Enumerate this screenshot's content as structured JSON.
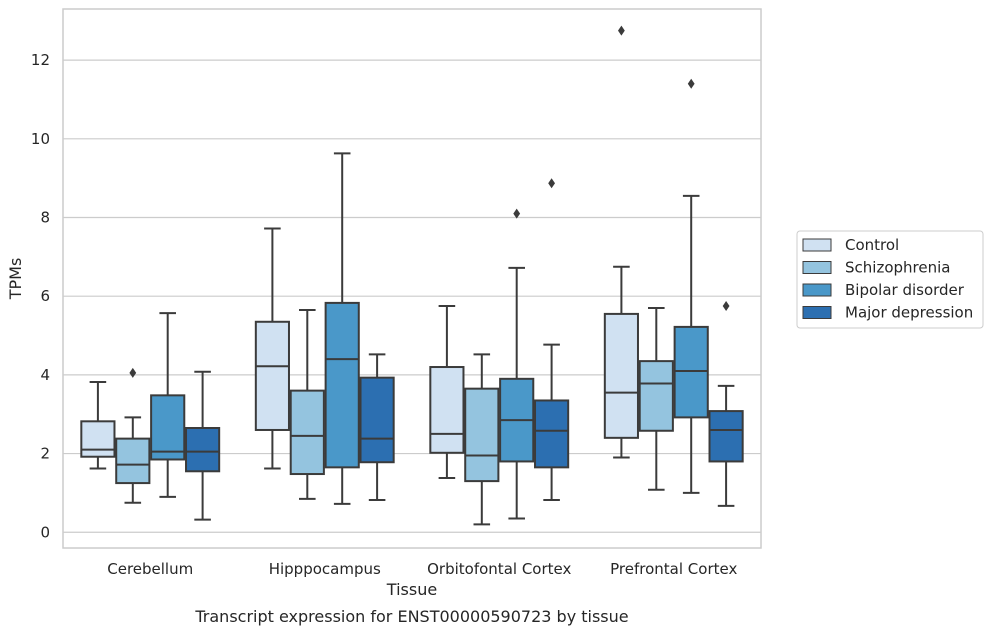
{
  "chart_data": {
    "type": "box",
    "title": "",
    "caption": "Transcript expression for ENST00000590723 by tissue",
    "xlabel": "Tissue",
    "ylabel": "TPMs",
    "ylim": [
      -0.4,
      13.3
    ],
    "yticks": [
      0,
      2,
      4,
      6,
      8,
      10,
      12
    ],
    "grid": true,
    "legend_position": "right",
    "categories": [
      "Cerebellum",
      "Hipppocampus",
      "Orbitofontal Cortex",
      "Prefrontal Cortex"
    ],
    "series": [
      {
        "name": "Control",
        "color": "#d0e1f2",
        "boxes": [
          {
            "whislo": 1.62,
            "q1": 1.92,
            "med": 2.1,
            "q3": 2.82,
            "whishi": 3.82,
            "fliers": []
          },
          {
            "whislo": 1.62,
            "q1": 2.6,
            "med": 4.22,
            "q3": 5.35,
            "whishi": 7.72,
            "fliers": []
          },
          {
            "whislo": 1.38,
            "q1": 2.02,
            "med": 2.5,
            "q3": 4.2,
            "whishi": 5.75,
            "fliers": []
          },
          {
            "whislo": 1.9,
            "q1": 2.4,
            "med": 3.55,
            "q3": 5.55,
            "whishi": 6.75,
            "fliers": [
              12.75
            ]
          }
        ]
      },
      {
        "name": "Schizophrenia",
        "color": "#94c4df",
        "boxes": [
          {
            "whislo": 0.75,
            "q1": 1.25,
            "med": 1.72,
            "q3": 2.38,
            "whishi": 2.92,
            "fliers": [
              4.05
            ]
          },
          {
            "whislo": 0.85,
            "q1": 1.48,
            "med": 2.45,
            "q3": 3.6,
            "whishi": 5.65,
            "fliers": []
          },
          {
            "whislo": 0.2,
            "q1": 1.3,
            "med": 1.95,
            "q3": 3.65,
            "whishi": 4.52,
            "fliers": []
          },
          {
            "whislo": 1.08,
            "q1": 2.58,
            "med": 3.78,
            "q3": 4.35,
            "whishi": 5.7,
            "fliers": []
          }
        ]
      },
      {
        "name": "Bipolar disorder",
        "color": "#4a98c9",
        "boxes": [
          {
            "whislo": 0.9,
            "q1": 1.85,
            "med": 2.05,
            "q3": 3.48,
            "whishi": 5.57,
            "fliers": []
          },
          {
            "whislo": 0.72,
            "q1": 1.65,
            "med": 4.4,
            "q3": 5.83,
            "whishi": 9.63,
            "fliers": []
          },
          {
            "whislo": 0.35,
            "q1": 1.8,
            "med": 2.85,
            "q3": 3.9,
            "whishi": 6.72,
            "fliers": [
              8.1
            ]
          },
          {
            "whislo": 1.0,
            "q1": 2.92,
            "med": 4.1,
            "q3": 5.22,
            "whishi": 8.55,
            "fliers": [
              11.4
            ]
          }
        ]
      },
      {
        "name": "Major depression",
        "color": "#2c6fb1",
        "boxes": [
          {
            "whislo": 0.32,
            "q1": 1.55,
            "med": 2.05,
            "q3": 2.65,
            "whishi": 4.08,
            "fliers": []
          },
          {
            "whislo": 0.82,
            "q1": 1.78,
            "med": 2.38,
            "q3": 3.93,
            "whishi": 4.52,
            "fliers": []
          },
          {
            "whislo": 0.82,
            "q1": 1.65,
            "med": 2.58,
            "q3": 3.35,
            "whishi": 4.77,
            "fliers": [
              8.87
            ]
          },
          {
            "whislo": 0.67,
            "q1": 1.8,
            "med": 2.6,
            "q3": 3.08,
            "whishi": 3.72,
            "fliers": [
              5.75
            ]
          }
        ]
      }
    ]
  }
}
